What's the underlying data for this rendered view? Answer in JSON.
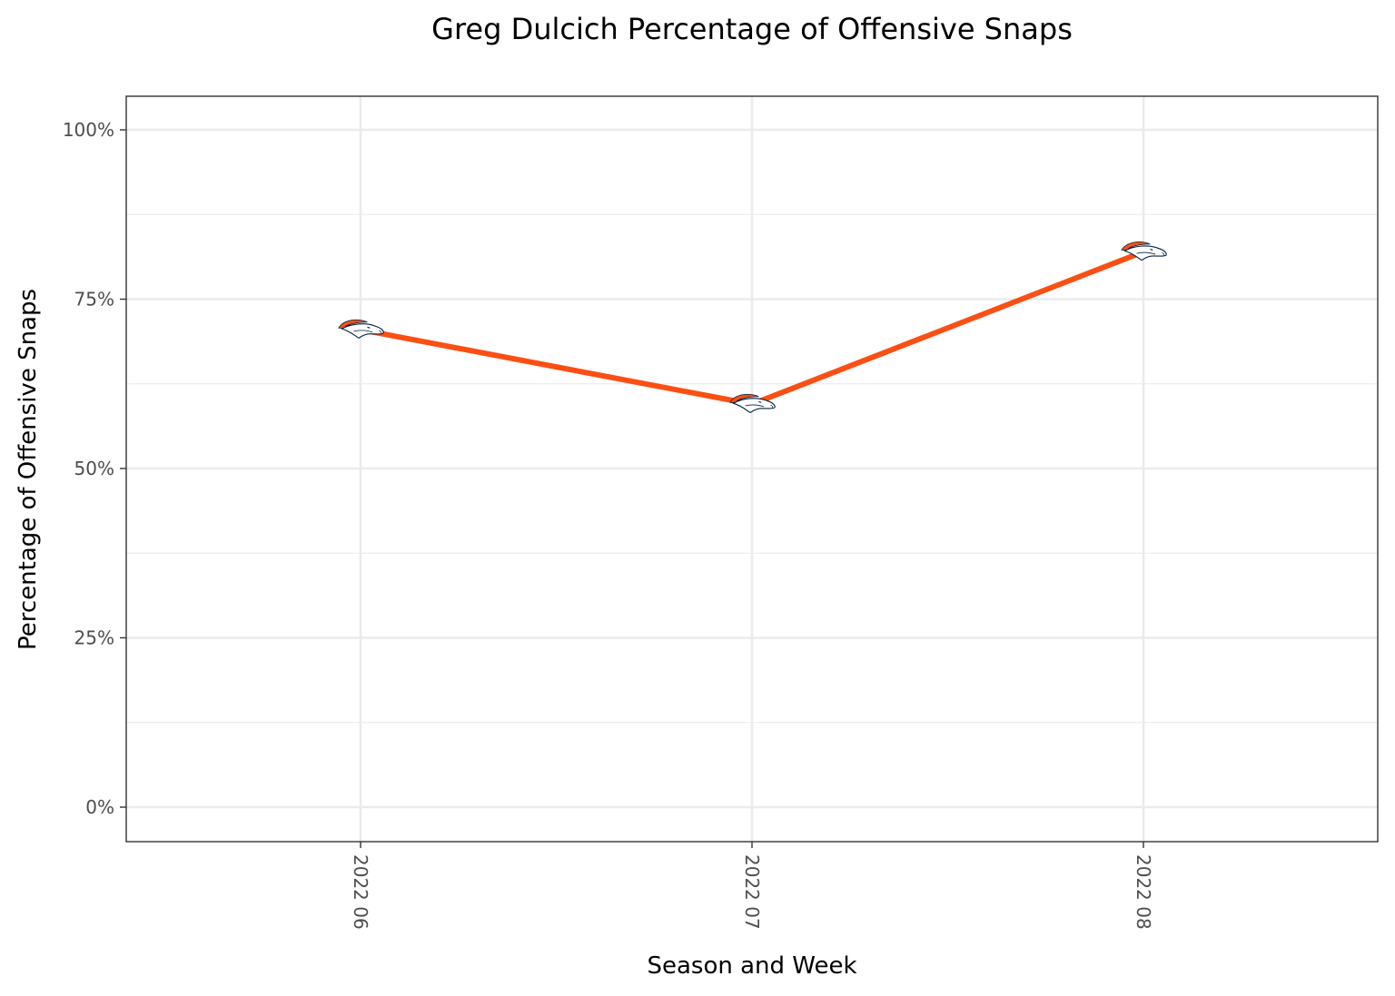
{
  "chart_data": {
    "type": "line",
    "title": "Greg Dulcich Percentage of Offensive Snaps",
    "xlabel": "Season and Week",
    "ylabel": "Percentage of Offensive Snaps",
    "categories": [
      "2022 06",
      "2022 07",
      "2022 08"
    ],
    "values": [
      70.5,
      59.5,
      82
    ],
    "ylim": [
      0,
      100
    ],
    "yticks": [
      0,
      25,
      50,
      75,
      100
    ],
    "ytick_labels": [
      "0%",
      "25%",
      "50%",
      "75%",
      "100%"
    ],
    "grid": true,
    "line_color": "#FB4F14",
    "marker": "denver-broncos-logo-icon",
    "logo_colors": {
      "orange": "#FB4F14",
      "navy": "#002244"
    }
  }
}
